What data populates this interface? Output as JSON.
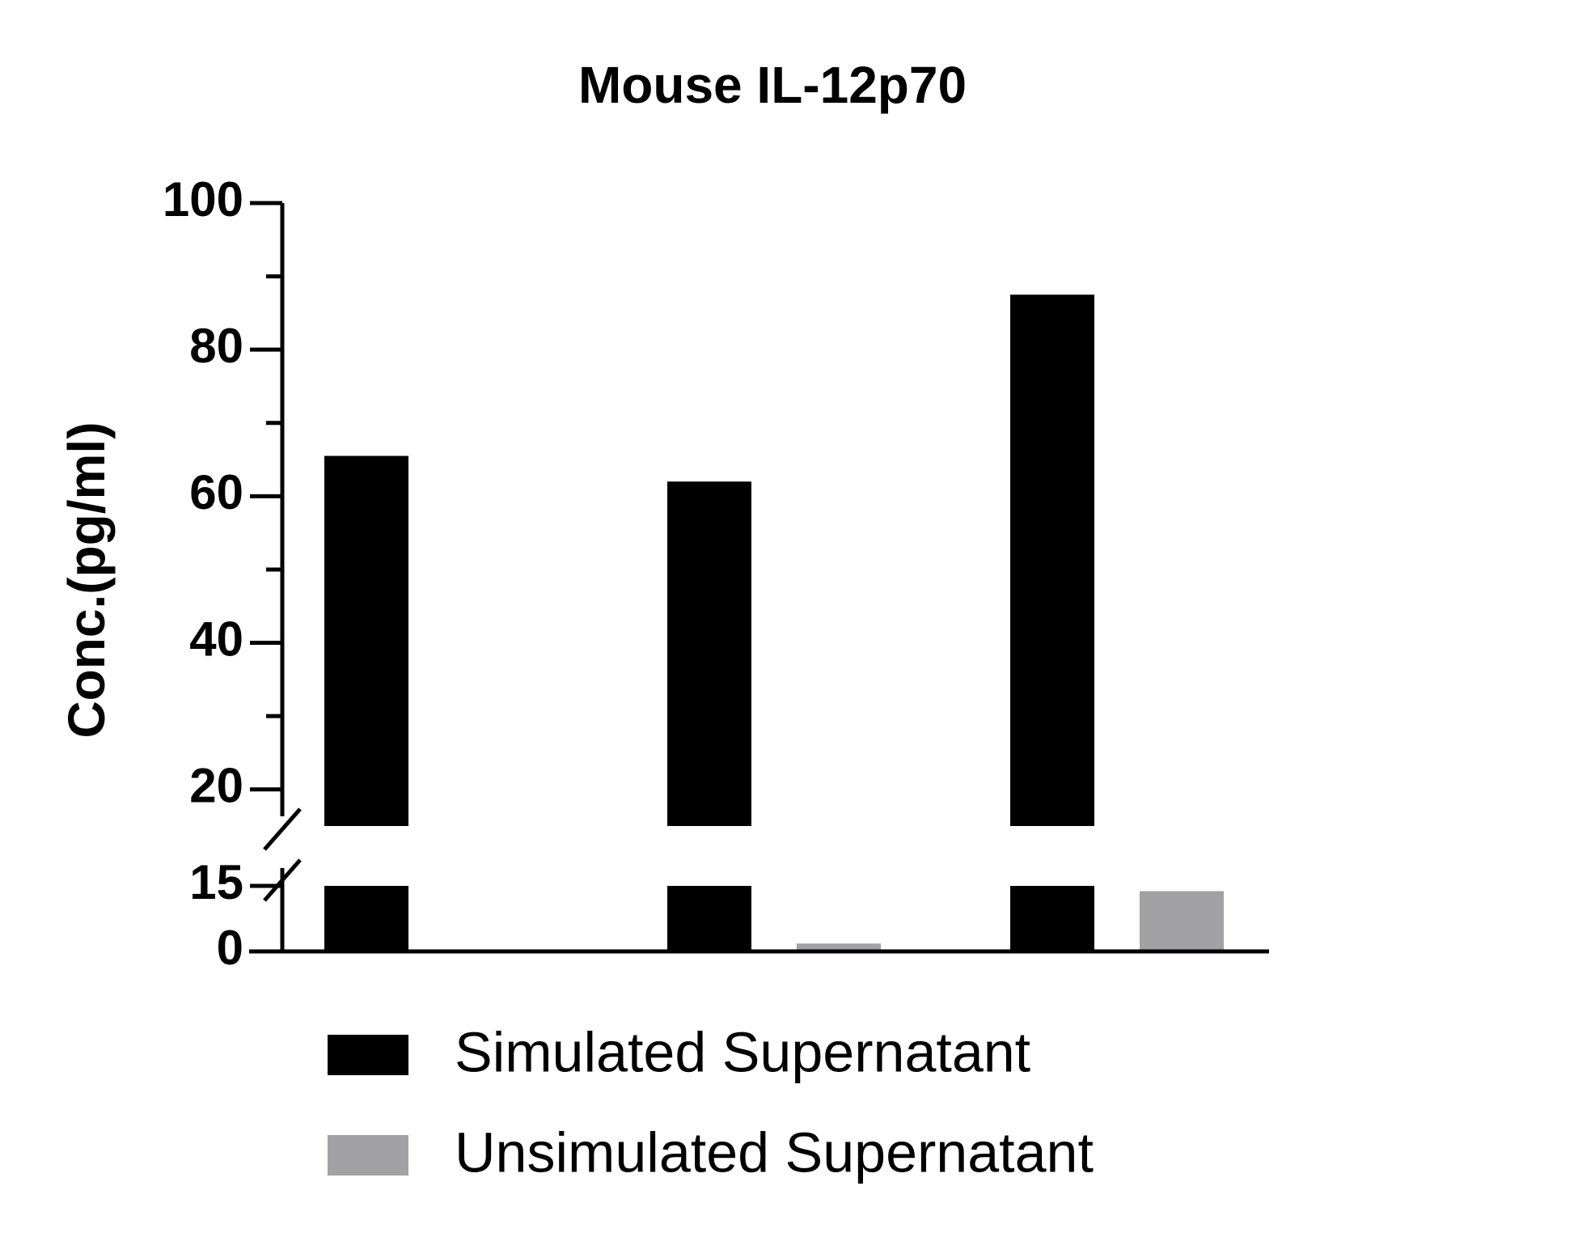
{
  "chart_data": {
    "type": "bar",
    "title": "Mouse IL-12p70",
    "y_label": "Conc.(pg/ml)",
    "categories": [
      null,
      null,
      null
    ],
    "series": [
      {
        "name": "Simulated Supernatant",
        "color": "#000000",
        "values": [
          65.5,
          62,
          87.5
        ]
      },
      {
        "name": "Unsimulated Supernatant",
        "color": "#a2a2a5",
        "values": [
          0,
          1.8,
          13.8
        ]
      }
    ],
    "ylim": [
      0,
      100
    ],
    "y_segments": [
      {
        "ylim": [
          0,
          15
        ],
        "yticks": [
          0,
          15
        ],
        "yminorticks": []
      },
      {
        "ylim": [
          15,
          100
        ],
        "yticks": [
          20,
          40,
          60,
          80,
          100
        ],
        "yminorticks": [
          30,
          50,
          70,
          90
        ]
      }
    ],
    "legend": "bottom"
  }
}
